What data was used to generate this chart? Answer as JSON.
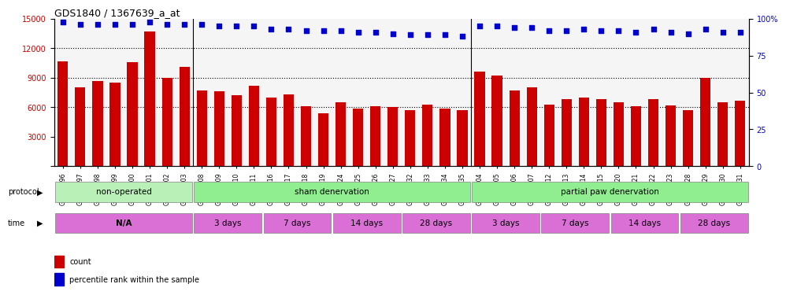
{
  "title": "GDS1840 / 1367639_a_at",
  "samples": [
    "GSM53196",
    "GSM53197",
    "GSM53198",
    "GSM53199",
    "GSM53200",
    "GSM53201",
    "GSM53202",
    "GSM53203",
    "GSM53208",
    "GSM53209",
    "GSM53210",
    "GSM53211",
    "GSM53216",
    "GSM53217",
    "GSM53218",
    "GSM53219",
    "GSM53224",
    "GSM53225",
    "GSM53226",
    "GSM53227",
    "GSM53232",
    "GSM53233",
    "GSM53234",
    "GSM53235",
    "GSM53204",
    "GSM53205",
    "GSM53206",
    "GSM53207",
    "GSM53212",
    "GSM53213",
    "GSM53214",
    "GSM53215",
    "GSM53220",
    "GSM53221",
    "GSM53222",
    "GSM53223",
    "GSM53228",
    "GSM53229",
    "GSM53230",
    "GSM53231"
  ],
  "counts": [
    10700,
    8000,
    8700,
    8500,
    10600,
    13700,
    9000,
    10100,
    7700,
    7600,
    7200,
    8200,
    7000,
    7300,
    6100,
    5400,
    6500,
    5900,
    6100,
    6000,
    5700,
    6300,
    5900,
    5700,
    9600,
    9200,
    7700,
    8000,
    6300,
    6800,
    7000,
    6800,
    6500,
    6100,
    6800,
    6200,
    5700,
    9000,
    6500,
    6700
  ],
  "percentile_ranks": [
    98,
    96,
    96,
    96,
    96,
    98,
    96,
    96,
    96,
    95,
    95,
    95,
    93,
    93,
    92,
    92,
    92,
    91,
    91,
    90,
    89,
    89,
    89,
    88,
    95,
    95,
    94,
    94,
    92,
    92,
    93,
    92,
    92,
    91,
    93,
    91,
    90,
    93,
    91,
    91
  ],
  "bar_color": "#cc0000",
  "dot_color": "#0000cc",
  "ylim_left": [
    0,
    15000
  ],
  "ylim_right": [
    0,
    100
  ],
  "yticks_left": [
    0,
    3000,
    6000,
    9000,
    12000,
    15000
  ],
  "yticks_right": [
    0,
    25,
    50,
    75,
    100
  ],
  "grid_values": [
    6000,
    9000,
    12000
  ],
  "protocol_groups": [
    {
      "label": "non-operated",
      "start": 0,
      "end": 7,
      "color": "#90ee90"
    },
    {
      "label": "sham denervation",
      "start": 8,
      "end": 23,
      "color": "#90ee90"
    },
    {
      "label": "partial paw denervation",
      "start": 24,
      "end": 39,
      "color": "#90ee90"
    }
  ],
  "time_groups": [
    {
      "label": "N/A",
      "start": 0,
      "end": 7,
      "color": "#da70d6"
    },
    {
      "label": "3 days",
      "start": 8,
      "end": 11,
      "color": "#da70d6"
    },
    {
      "label": "7 days",
      "start": 12,
      "end": 15,
      "color": "#da70d6"
    },
    {
      "label": "14 days",
      "start": 16,
      "end": 19,
      "color": "#da70d6"
    },
    {
      "label": "28 days",
      "start": 20,
      "end": 23,
      "color": "#da70d6"
    },
    {
      "label": "3 days",
      "start": 24,
      "end": 27,
      "color": "#da70d6"
    },
    {
      "label": "7 days",
      "start": 28,
      "end": 31,
      "color": "#da70d6"
    },
    {
      "label": "14 days",
      "start": 32,
      "end": 35,
      "color": "#da70d6"
    },
    {
      "label": "28 days",
      "start": 36,
      "end": 39,
      "color": "#da70d6"
    }
  ],
  "legend_count_color": "#cc0000",
  "legend_dot_color": "#0000cc",
  "bg_color": "#ffffff",
  "plot_bg_color": "#f5f5f5"
}
